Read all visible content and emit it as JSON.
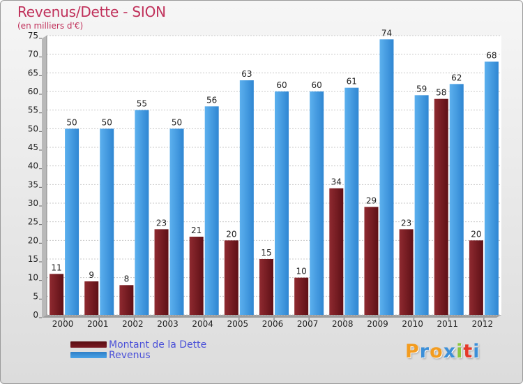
{
  "chart_data": {
    "type": "bar",
    "title": "Revenus/Dette - SION",
    "subtitle": "(en milliers d'€)",
    "categories": [
      "2000",
      "2001",
      "2002",
      "2003",
      "2004",
      "2005",
      "2006",
      "2007",
      "2008",
      "2009",
      "2010",
      "2011",
      "2012"
    ],
    "series": [
      {
        "name": "Montant de la Dette",
        "values": [
          11,
          9,
          8,
          23,
          21,
          20,
          15,
          10,
          34,
          29,
          23,
          58,
          20
        ],
        "color": "#7a1a22"
      },
      {
        "name": "Revenus",
        "values": [
          50,
          50,
          55,
          50,
          56,
          63,
          60,
          60,
          61,
          74,
          59,
          62,
          68
        ],
        "color": "#3f96de"
      }
    ],
    "ylim": [
      0,
      75
    ],
    "yticks": [
      0,
      5,
      10,
      15,
      20,
      25,
      30,
      35,
      40,
      45,
      50,
      55,
      60,
      65,
      70,
      75
    ],
    "grid": true,
    "legend_position": "bottom-left"
  },
  "logo": {
    "letters": [
      "P",
      "r",
      "o",
      "x",
      "i",
      "t",
      "i"
    ],
    "colors": [
      "#f39c1f",
      "#3b8fd8",
      "#f39c1f",
      "#3b8fd8",
      "#8cc63f",
      "#e5392a",
      "#3b8fd8"
    ]
  }
}
